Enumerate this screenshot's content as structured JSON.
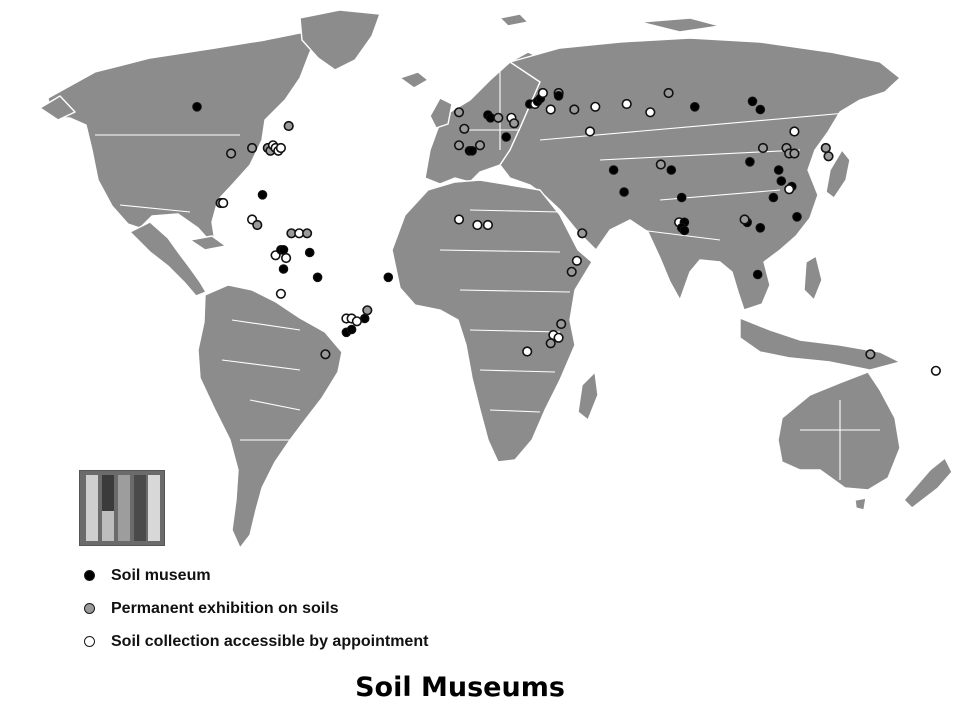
{
  "caption": "Soil Museums",
  "colors": {
    "land": "#8c8c8c",
    "background": "#ffffff",
    "border": "#ffffff"
  },
  "legend": {
    "items": [
      {
        "key": "museum",
        "label": "Soil museum",
        "fill": "#000000"
      },
      {
        "key": "exhibition",
        "label": "Permanent exhibition on soils",
        "fill": "#9a9a9a"
      },
      {
        "key": "collection",
        "label": "Soil collection accessible by appointment",
        "fill": "#ffffff"
      }
    ]
  },
  "thumbnail": {
    "icon": "soil-profile-monoliths-image"
  },
  "markers": [
    {
      "type": "museum",
      "lon": -108,
      "lat": 55
    },
    {
      "type": "exhibition",
      "lon": -73,
      "lat": 48
    },
    {
      "type": "exhibition",
      "lon": -95,
      "lat": 38
    },
    {
      "type": "exhibition",
      "lon": -87,
      "lat": 40
    },
    {
      "type": "exhibition",
      "lon": -81,
      "lat": 40
    },
    {
      "type": "exhibition",
      "lon": -80,
      "lat": 39
    },
    {
      "type": "collection",
      "lon": -79,
      "lat": 41
    },
    {
      "type": "collection",
      "lon": -78,
      "lat": 40
    },
    {
      "type": "collection",
      "lon": -77,
      "lat": 39
    },
    {
      "type": "collection",
      "lon": -76,
      "lat": 40
    },
    {
      "type": "museum",
      "lon": -83,
      "lat": 23
    },
    {
      "type": "exhibition",
      "lon": -99,
      "lat": 20
    },
    {
      "type": "collection",
      "lon": -98,
      "lat": 20
    },
    {
      "type": "collection",
      "lon": -87,
      "lat": 14
    },
    {
      "type": "exhibition",
      "lon": -85,
      "lat": 12
    },
    {
      "type": "exhibition",
      "lon": -72,
      "lat": 9
    },
    {
      "type": "collection",
      "lon": -69,
      "lat": 9
    },
    {
      "type": "exhibition",
      "lon": -66,
      "lat": 9
    },
    {
      "type": "collection",
      "lon": -78,
      "lat": 1
    },
    {
      "type": "museum",
      "lon": -76,
      "lat": 3
    },
    {
      "type": "museum",
      "lon": -75,
      "lat": 3
    },
    {
      "type": "collection",
      "lon": -74,
      "lat": 0
    },
    {
      "type": "museum",
      "lon": -65,
      "lat": 2
    },
    {
      "type": "museum",
      "lon": -75,
      "lat": -4
    },
    {
      "type": "museum",
      "lon": -62,
      "lat": -7
    },
    {
      "type": "collection",
      "lon": -76,
      "lat": -13
    },
    {
      "type": "museum",
      "lon": -35,
      "lat": -7
    },
    {
      "type": "exhibition",
      "lon": -43,
      "lat": -19
    },
    {
      "type": "museum",
      "lon": -44,
      "lat": -22
    },
    {
      "type": "collection",
      "lon": -51,
      "lat": -22
    },
    {
      "type": "collection",
      "lon": -49,
      "lat": -22
    },
    {
      "type": "collection",
      "lon": -47,
      "lat": -23
    },
    {
      "type": "museum",
      "lon": -51,
      "lat": -27
    },
    {
      "type": "museum",
      "lon": -49,
      "lat": -26
    },
    {
      "type": "exhibition",
      "lon": -59,
      "lat": -35
    },
    {
      "type": "exhibition",
      "lon": -8,
      "lat": 53
    },
    {
      "type": "exhibition",
      "lon": -6,
      "lat": 47
    },
    {
      "type": "museum",
      "lon": 3,
      "lat": 52
    },
    {
      "type": "museum",
      "lon": 4,
      "lat": 51
    },
    {
      "type": "exhibition",
      "lon": 7,
      "lat": 51
    },
    {
      "type": "collection",
      "lon": 12,
      "lat": 51
    },
    {
      "type": "exhibition",
      "lon": 13,
      "lat": 49
    },
    {
      "type": "exhibition",
      "lon": -8,
      "lat": 41
    },
    {
      "type": "museum",
      "lon": -4,
      "lat": 39
    },
    {
      "type": "museum",
      "lon": -3,
      "lat": 39
    },
    {
      "type": "exhibition",
      "lon": 0,
      "lat": 41
    },
    {
      "type": "museum",
      "lon": 10,
      "lat": 44
    },
    {
      "type": "museum",
      "lon": 19,
      "lat": 56
    },
    {
      "type": "collection",
      "lon": 21,
      "lat": 56
    },
    {
      "type": "museum",
      "lon": 22,
      "lat": 57
    },
    {
      "type": "museum",
      "lon": 23,
      "lat": 58
    },
    {
      "type": "collection",
      "lon": 24,
      "lat": 60
    },
    {
      "type": "exhibition",
      "lon": 30,
      "lat": 60
    },
    {
      "type": "museum",
      "lon": 30,
      "lat": 59
    },
    {
      "type": "collection",
      "lon": 27,
      "lat": 54
    },
    {
      "type": "exhibition",
      "lon": 36,
      "lat": 54
    },
    {
      "type": "collection",
      "lon": 44,
      "lat": 55
    },
    {
      "type": "collection",
      "lon": 56,
      "lat": 56
    },
    {
      "type": "exhibition",
      "lon": 72,
      "lat": 60
    },
    {
      "type": "museum",
      "lon": 82,
      "lat": 55
    },
    {
      "type": "museum",
      "lon": 104,
      "lat": 57
    },
    {
      "type": "museum",
      "lon": 107,
      "lat": 54
    },
    {
      "type": "collection",
      "lon": 42,
      "lat": 46
    },
    {
      "type": "collection",
      "lon": 65,
      "lat": 53
    },
    {
      "type": "museum",
      "lon": 51,
      "lat": 32
    },
    {
      "type": "museum",
      "lon": 55,
      "lat": 24
    },
    {
      "type": "exhibition",
      "lon": 69,
      "lat": 34
    },
    {
      "type": "museum",
      "lon": 73,
      "lat": 32
    },
    {
      "type": "museum",
      "lon": 77,
      "lat": 22
    },
    {
      "type": "collection",
      "lon": 76,
      "lat": 13
    },
    {
      "type": "museum",
      "lon": 78,
      "lat": 13
    },
    {
      "type": "museum",
      "lon": 77,
      "lat": 11
    },
    {
      "type": "museum",
      "lon": 78,
      "lat": 10
    },
    {
      "type": "museum",
      "lon": 103,
      "lat": 35
    },
    {
      "type": "museum",
      "lon": 114,
      "lat": 32
    },
    {
      "type": "museum",
      "lon": 115,
      "lat": 28
    },
    {
      "type": "museum",
      "lon": 112,
      "lat": 22
    },
    {
      "type": "museum",
      "lon": 119,
      "lat": 26
    },
    {
      "type": "collection",
      "lon": 118,
      "lat": 25
    },
    {
      "type": "museum",
      "lon": 102,
      "lat": 13
    },
    {
      "type": "exhibition",
      "lon": 101,
      "lat": 14
    },
    {
      "type": "museum",
      "lon": 107,
      "lat": 11
    },
    {
      "type": "exhibition",
      "lon": 108,
      "lat": 40
    },
    {
      "type": "exhibition",
      "lon": 117,
      "lat": 40
    },
    {
      "type": "exhibition",
      "lon": 118,
      "lat": 38
    },
    {
      "type": "exhibition",
      "lon": 120,
      "lat": 38
    },
    {
      "type": "collection",
      "lon": 120,
      "lat": 46
    },
    {
      "type": "exhibition",
      "lon": 133,
      "lat": 37
    },
    {
      "type": "exhibition",
      "lon": 132,
      "lat": 40
    },
    {
      "type": "museum",
      "lon": 121,
      "lat": 15
    },
    {
      "type": "museum",
      "lon": 106,
      "lat": -6
    },
    {
      "type": "collection",
      "lon": -8,
      "lat": 14
    },
    {
      "type": "collection",
      "lon": -1,
      "lat": 12
    },
    {
      "type": "collection",
      "lon": 3,
      "lat": 12
    },
    {
      "type": "exhibition",
      "lon": 39,
      "lat": 9
    },
    {
      "type": "collection",
      "lon": 37,
      "lat": -1
    },
    {
      "type": "exhibition",
      "lon": 35,
      "lat": -5
    },
    {
      "type": "exhibition",
      "lon": 31,
      "lat": -24
    },
    {
      "type": "collection",
      "lon": 28,
      "lat": -28
    },
    {
      "type": "collection",
      "lon": 30,
      "lat": -29
    },
    {
      "type": "exhibition",
      "lon": 27,
      "lat": -31
    },
    {
      "type": "collection",
      "lon": 18,
      "lat": -34
    },
    {
      "type": "exhibition",
      "lon": 149,
      "lat": -35
    },
    {
      "type": "collection",
      "lon": 174,
      "lat": -41
    }
  ]
}
